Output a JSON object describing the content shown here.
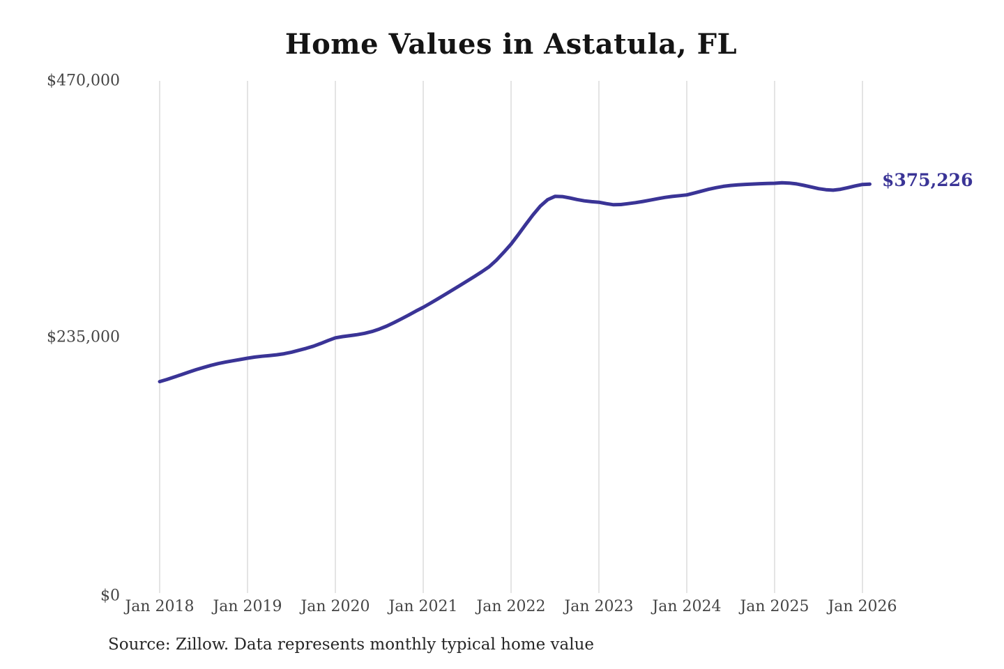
{
  "page": {
    "title": "Home Values in Astatula, FL",
    "source_note": "Source: Zillow. Data represents monthly typical home value"
  },
  "chart_data": {
    "type": "line",
    "title": "Home Values in Astatula, FL",
    "unit": "USD",
    "interval": "monthly",
    "x_start": "2018-01",
    "x_end": "2026-02",
    "xticks": [
      "Jan 2018",
      "Jan 2019",
      "Jan 2020",
      "Jan 2021",
      "Jan 2022",
      "Jan 2023",
      "Jan 2024",
      "Jan 2025",
      "Jan 2026"
    ],
    "yticks": [
      {
        "label": "$470,000",
        "value": 470000
      },
      {
        "label": "$235,000",
        "value": 235000
      },
      {
        "label": "$0",
        "value": 0
      }
    ],
    "ylim": [
      0,
      470000
    ],
    "grid": "vertical-only",
    "legend": "none",
    "line_color": "#3a3496",
    "gridline_color": "#cacaca",
    "end_label": "$375,226",
    "final_value": 375226,
    "series": [
      {
        "name": "Typical home value",
        "values": [
          194000,
          196000,
          198200,
          200500,
          202800,
          205000,
          207000,
          208900,
          210600,
          211900,
          213100,
          214300,
          215500,
          216500,
          217300,
          217900,
          218600,
          219600,
          221000,
          222700,
          224500,
          226500,
          229000,
          231700,
          234200,
          235300,
          236200,
          237100,
          238300,
          240000,
          242200,
          244900,
          248100,
          251500,
          255000,
          258700,
          262200,
          266000,
          270000,
          274000,
          278100,
          282200,
          286300,
          290500,
          294800,
          299400,
          305500,
          312600,
          320200,
          329000,
          338200,
          347100,
          355000,
          361000,
          364000,
          363800,
          362600,
          361100,
          359900,
          359100,
          358600,
          357300,
          356300,
          356500,
          357300,
          358200,
          359300,
          360500,
          361800,
          363000,
          363900,
          364600,
          365300,
          367000,
          368800,
          370500,
          372000,
          373200,
          374000,
          374600,
          375000,
          375300,
          375600,
          375800,
          376000,
          376500,
          376200,
          375400,
          374100,
          372600,
          371100,
          370100,
          369700,
          370500,
          372000,
          373600,
          374900,
          375226
        ]
      }
    ]
  }
}
